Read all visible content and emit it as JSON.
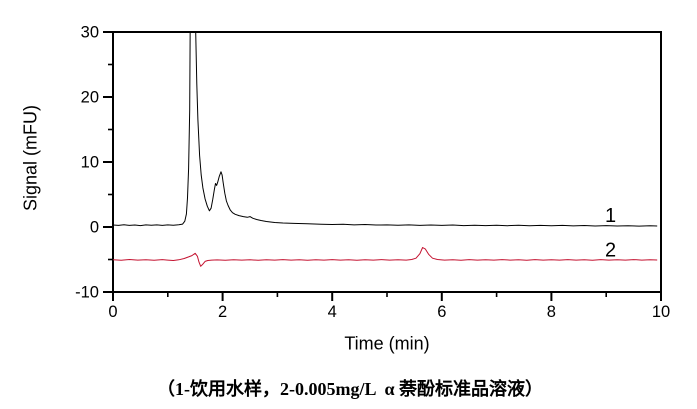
{
  "figure": {
    "caption": "（1-饮用水样，2-0.005mg/L  α 萘酚标准品溶液）"
  },
  "chart_data": {
    "type": "line",
    "title": "",
    "xlabel": "Time (min)",
    "ylabel": "Signal (mFU)",
    "xlim": [
      0,
      10
    ],
    "ylim": [
      -10,
      30
    ],
    "grid": false,
    "legend_position": "none",
    "x_ticks": {
      "major": [
        0,
        2,
        4,
        6,
        8,
        10
      ],
      "minor": [
        1,
        3,
        5,
        7,
        9
      ]
    },
    "y_ticks": {
      "major": [
        30,
        20,
        10,
        0,
        -10
      ],
      "minor": [
        25,
        15,
        5,
        -5
      ]
    },
    "colors": {
      "axis": "#000000",
      "trace1": "#000000",
      "trace2": "#c41230"
    },
    "annotations": [
      {
        "text": "1",
        "t": 9.08,
        "v": 0.8
      },
      {
        "text": "2",
        "t": 9.08,
        "v": -4.55
      }
    ],
    "series": [
      {
        "name": "1 - 饮用水样 (drinking water sample)",
        "label": "1",
        "color": "#000000",
        "points": [
          [
            0.0,
            0.3
          ],
          [
            0.1,
            0.25
          ],
          [
            0.2,
            0.35
          ],
          [
            0.3,
            0.25
          ],
          [
            0.4,
            0.3
          ],
          [
            0.5,
            0.22
          ],
          [
            0.6,
            0.32
          ],
          [
            0.7,
            0.26
          ],
          [
            0.8,
            0.33
          ],
          [
            0.9,
            0.24
          ],
          [
            1.0,
            0.32
          ],
          [
            1.1,
            0.28
          ],
          [
            1.2,
            0.35
          ],
          [
            1.27,
            0.45
          ],
          [
            1.31,
            0.9
          ],
          [
            1.34,
            2.0
          ],
          [
            1.36,
            4.5
          ],
          [
            1.38,
            9.0
          ],
          [
            1.4,
            18.0
          ],
          [
            1.41,
            34.0
          ],
          [
            1.42,
            60.0
          ],
          [
            1.49,
            60.0
          ],
          [
            1.51,
            30.0
          ],
          [
            1.53,
            22.0
          ],
          [
            1.55,
            16.5
          ],
          [
            1.58,
            11.0
          ],
          [
            1.61,
            8.0
          ],
          [
            1.64,
            6.0
          ],
          [
            1.68,
            4.3
          ],
          [
            1.72,
            3.2
          ],
          [
            1.76,
            2.5
          ],
          [
            1.79,
            2.9
          ],
          [
            1.82,
            4.2
          ],
          [
            1.85,
            5.8
          ],
          [
            1.87,
            6.7
          ],
          [
            1.89,
            6.4
          ],
          [
            1.91,
            6.9
          ],
          [
            1.94,
            7.8
          ],
          [
            1.97,
            8.5
          ],
          [
            1.99,
            8.0
          ],
          [
            2.01,
            6.9
          ],
          [
            2.04,
            5.2
          ],
          [
            2.07,
            4.0
          ],
          [
            2.1,
            3.3
          ],
          [
            2.14,
            2.6
          ],
          [
            2.18,
            2.2
          ],
          [
            2.23,
            1.95
          ],
          [
            2.3,
            1.75
          ],
          [
            2.38,
            1.6
          ],
          [
            2.45,
            1.5
          ],
          [
            2.5,
            1.6
          ],
          [
            2.55,
            1.35
          ],
          [
            2.62,
            1.15
          ],
          [
            2.7,
            1.0
          ],
          [
            2.8,
            0.85
          ],
          [
            2.95,
            0.7
          ],
          [
            3.1,
            0.62
          ],
          [
            3.3,
            0.55
          ],
          [
            3.55,
            0.5
          ],
          [
            3.8,
            0.42
          ],
          [
            4.0,
            0.38
          ],
          [
            4.2,
            0.42
          ],
          [
            4.4,
            0.33
          ],
          [
            4.6,
            0.38
          ],
          [
            4.8,
            0.3
          ],
          [
            5.0,
            0.33
          ],
          [
            5.2,
            0.27
          ],
          [
            5.4,
            0.32
          ],
          [
            5.6,
            0.25
          ],
          [
            5.8,
            0.3
          ],
          [
            6.0,
            0.24
          ],
          [
            6.2,
            0.3
          ],
          [
            6.4,
            0.22
          ],
          [
            6.6,
            0.28
          ],
          [
            6.8,
            0.22
          ],
          [
            7.0,
            0.27
          ],
          [
            7.2,
            0.2
          ],
          [
            7.4,
            0.26
          ],
          [
            7.6,
            0.19
          ],
          [
            7.8,
            0.25
          ],
          [
            8.0,
            0.18
          ],
          [
            8.2,
            0.24
          ],
          [
            8.4,
            0.17
          ],
          [
            8.6,
            0.23
          ],
          [
            8.8,
            0.16
          ],
          [
            9.0,
            0.22
          ],
          [
            9.2,
            0.15
          ],
          [
            9.4,
            0.2
          ],
          [
            9.6,
            0.14
          ],
          [
            9.8,
            0.18
          ],
          [
            9.93,
            0.15
          ]
        ]
      },
      {
        "name": "2 - 0.005mg/L α-萘酚标准品溶液 (α-naphthol standard solution)",
        "label": "2",
        "color": "#c41230",
        "points": [
          [
            0.0,
            -5.05
          ],
          [
            0.15,
            -5.12
          ],
          [
            0.3,
            -5.0
          ],
          [
            0.45,
            -5.1
          ],
          [
            0.6,
            -5.03
          ],
          [
            0.75,
            -5.12
          ],
          [
            0.9,
            -5.02
          ],
          [
            1.0,
            -5.1
          ],
          [
            1.1,
            -5.15
          ],
          [
            1.2,
            -5.05
          ],
          [
            1.3,
            -4.85
          ],
          [
            1.38,
            -4.6
          ],
          [
            1.44,
            -4.4
          ],
          [
            1.5,
            -4.05
          ],
          [
            1.54,
            -4.5
          ],
          [
            1.57,
            -5.4
          ],
          [
            1.6,
            -6.05
          ],
          [
            1.64,
            -5.7
          ],
          [
            1.68,
            -5.3
          ],
          [
            1.73,
            -5.15
          ],
          [
            1.8,
            -5.1
          ],
          [
            1.9,
            -5.06
          ],
          [
            2.05,
            -5.12
          ],
          [
            2.2,
            -5.03
          ],
          [
            2.35,
            -5.1
          ],
          [
            2.5,
            -5.04
          ],
          [
            2.65,
            -5.12
          ],
          [
            2.8,
            -5.03
          ],
          [
            2.95,
            -5.1
          ],
          [
            3.1,
            -5.02
          ],
          [
            3.25,
            -5.1
          ],
          [
            3.4,
            -5.04
          ],
          [
            3.55,
            -5.11
          ],
          [
            3.7,
            -5.03
          ],
          [
            3.85,
            -5.1
          ],
          [
            4.0,
            -5.02
          ],
          [
            4.15,
            -5.1
          ],
          [
            4.3,
            -5.04
          ],
          [
            4.45,
            -5.11
          ],
          [
            4.6,
            -5.03
          ],
          [
            4.75,
            -5.1
          ],
          [
            4.9,
            -5.02
          ],
          [
            5.05,
            -5.1
          ],
          [
            5.2,
            -5.05
          ],
          [
            5.35,
            -5.1
          ],
          [
            5.45,
            -5.0
          ],
          [
            5.53,
            -4.8
          ],
          [
            5.6,
            -4.1
          ],
          [
            5.65,
            -3.15
          ],
          [
            5.7,
            -3.4
          ],
          [
            5.76,
            -4.2
          ],
          [
            5.83,
            -4.8
          ],
          [
            5.92,
            -5.0
          ],
          [
            6.05,
            -5.1
          ],
          [
            6.2,
            -5.04
          ],
          [
            6.35,
            -5.11
          ],
          [
            6.5,
            -5.02
          ],
          [
            6.65,
            -5.1
          ],
          [
            6.8,
            -5.03
          ],
          [
            6.95,
            -5.1
          ],
          [
            7.1,
            -5.02
          ],
          [
            7.25,
            -5.1
          ],
          [
            7.4,
            -5.04
          ],
          [
            7.55,
            -5.11
          ],
          [
            7.7,
            -5.02
          ],
          [
            7.85,
            -5.1
          ],
          [
            8.0,
            -5.03
          ],
          [
            8.15,
            -5.1
          ],
          [
            8.3,
            -5.02
          ],
          [
            8.45,
            -5.1
          ],
          [
            8.6,
            -5.04
          ],
          [
            8.75,
            -5.11
          ],
          [
            8.9,
            -5.02
          ],
          [
            9.05,
            -5.1
          ],
          [
            9.2,
            -5.04
          ],
          [
            9.35,
            -5.1
          ],
          [
            9.5,
            -5.02
          ],
          [
            9.65,
            -5.09
          ],
          [
            9.8,
            -5.04
          ],
          [
            9.93,
            -5.07
          ]
        ]
      }
    ]
  }
}
